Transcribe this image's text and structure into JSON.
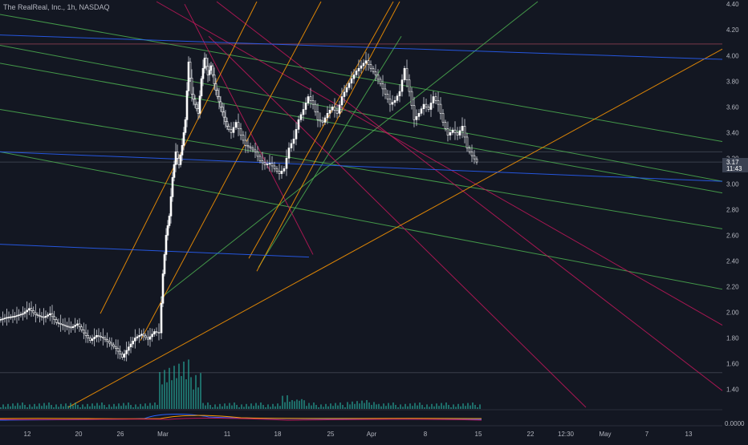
{
  "header": {
    "symbol_label": "The RealReal, Inc., 1h, NASDAQ"
  },
  "price_scale": {
    "ticks": [
      "4.40",
      "4.20",
      "4.00",
      "3.80",
      "3.60",
      "3.40",
      "3.20",
      "3.00",
      "2.80",
      "2.60",
      "2.40",
      "2.20",
      "2.00",
      "1.80",
      "1.60",
      "1.40"
    ],
    "last_price": "3.17",
    "countdown": "11:43",
    "indicator_zero": "0.0000"
  },
  "time_scale": {
    "labels": [
      "12",
      "20",
      "26",
      "Mar",
      "11",
      "18",
      "25",
      "Apr",
      "8",
      "15",
      "22",
      "12:30",
      "May",
      "7",
      "13"
    ]
  },
  "colors": {
    "background": "#131722",
    "candle_up": "#ffffff",
    "candle_down": "#ffffff",
    "green_lines": "#4caf50",
    "red_lines": "#c2185b",
    "orange_lines": "#ff9800",
    "blue_lines": "#2962ff",
    "last_price_badge": "#3b4252"
  },
  "chart_data": {
    "type": "candlestick",
    "title": "The RealReal, Inc., 1h, NASDAQ",
    "ylim": [
      1.26,
      4.42
    ],
    "y_ticks": [
      4.4,
      4.2,
      4.0,
      3.8,
      3.6,
      3.4,
      3.2,
      3.0,
      2.8,
      2.6,
      2.4,
      2.2,
      2.0,
      1.8,
      1.6,
      1.4
    ],
    "x_labels": [
      "12",
      "20",
      "26",
      "Mar",
      "11",
      "18",
      "25",
      "Apr",
      "8",
      "15",
      "22",
      "12:30",
      "May",
      "7",
      "13"
    ],
    "price_path": [
      {
        "x": 0,
        "y": 1.94
      },
      {
        "x": 10,
        "y": 1.96
      },
      {
        "x": 20,
        "y": 1.97
      },
      {
        "x": 30,
        "y": 1.99
      },
      {
        "x": 38,
        "y": 2.03
      },
      {
        "x": 46,
        "y": 1.98
      },
      {
        "x": 56,
        "y": 1.96
      },
      {
        "x": 64,
        "y": 1.99
      },
      {
        "x": 72,
        "y": 1.92
      },
      {
        "x": 80,
        "y": 1.9
      },
      {
        "x": 90,
        "y": 1.88
      },
      {
        "x": 98,
        "y": 1.91
      },
      {
        "x": 106,
        "y": 1.84
      },
      {
        "x": 114,
        "y": 1.78
      },
      {
        "x": 122,
        "y": 1.82
      },
      {
        "x": 130,
        "y": 1.8
      },
      {
        "x": 138,
        "y": 1.76
      },
      {
        "x": 146,
        "y": 1.72
      },
      {
        "x": 154,
        "y": 1.65
      },
      {
        "x": 162,
        "y": 1.73
      },
      {
        "x": 170,
        "y": 1.8
      },
      {
        "x": 178,
        "y": 1.83
      },
      {
        "x": 186,
        "y": 1.79
      },
      {
        "x": 194,
        "y": 1.85
      },
      {
        "x": 200,
        "y": 1.84
      },
      {
        "x": 204,
        "y": 2.3
      },
      {
        "x": 208,
        "y": 2.6
      },
      {
        "x": 212,
        "y": 2.75
      },
      {
        "x": 216,
        "y": 3.05
      },
      {
        "x": 220,
        "y": 3.25
      },
      {
        "x": 224,
        "y": 3.15
      },
      {
        "x": 228,
        "y": 3.3
      },
      {
        "x": 232,
        "y": 3.5
      },
      {
        "x": 236,
        "y": 3.95
      },
      {
        "x": 240,
        "y": 3.7
      },
      {
        "x": 244,
        "y": 3.62
      },
      {
        "x": 248,
        "y": 3.55
      },
      {
        "x": 252,
        "y": 3.82
      },
      {
        "x": 256,
        "y": 3.98
      },
      {
        "x": 260,
        "y": 3.85
      },
      {
        "x": 264,
        "y": 3.92
      },
      {
        "x": 268,
        "y": 3.78
      },
      {
        "x": 272,
        "y": 3.68
      },
      {
        "x": 276,
        "y": 3.6
      },
      {
        "x": 280,
        "y": 3.52
      },
      {
        "x": 284,
        "y": 3.45
      },
      {
        "x": 290,
        "y": 3.4
      },
      {
        "x": 296,
        "y": 3.48
      },
      {
        "x": 302,
        "y": 3.38
      },
      {
        "x": 308,
        "y": 3.3
      },
      {
        "x": 314,
        "y": 3.28
      },
      {
        "x": 320,
        "y": 3.25
      },
      {
        "x": 326,
        "y": 3.18
      },
      {
        "x": 332,
        "y": 3.15
      },
      {
        "x": 338,
        "y": 3.16
      },
      {
        "x": 344,
        "y": 3.12
      },
      {
        "x": 350,
        "y": 3.08
      },
      {
        "x": 356,
        "y": 3.12
      },
      {
        "x": 362,
        "y": 3.28
      },
      {
        "x": 368,
        "y": 3.35
      },
      {
        "x": 374,
        "y": 3.5
      },
      {
        "x": 380,
        "y": 3.58
      },
      {
        "x": 386,
        "y": 3.68
      },
      {
        "x": 392,
        "y": 3.62
      },
      {
        "x": 398,
        "y": 3.5
      },
      {
        "x": 404,
        "y": 3.48
      },
      {
        "x": 410,
        "y": 3.55
      },
      {
        "x": 416,
        "y": 3.6
      },
      {
        "x": 422,
        "y": 3.55
      },
      {
        "x": 428,
        "y": 3.68
      },
      {
        "x": 434,
        "y": 3.75
      },
      {
        "x": 440,
        "y": 3.82
      },
      {
        "x": 446,
        "y": 3.88
      },
      {
        "x": 452,
        "y": 3.92
      },
      {
        "x": 458,
        "y": 3.96
      },
      {
        "x": 464,
        "y": 3.9
      },
      {
        "x": 470,
        "y": 3.85
      },
      {
        "x": 476,
        "y": 3.78
      },
      {
        "x": 482,
        "y": 3.7
      },
      {
        "x": 488,
        "y": 3.62
      },
      {
        "x": 494,
        "y": 3.65
      },
      {
        "x": 500,
        "y": 3.72
      },
      {
        "x": 506,
        "y": 3.9
      },
      {
        "x": 512,
        "y": 3.72
      },
      {
        "x": 518,
        "y": 3.5
      },
      {
        "x": 524,
        "y": 3.55
      },
      {
        "x": 530,
        "y": 3.62
      },
      {
        "x": 536,
        "y": 3.58
      },
      {
        "x": 542,
        "y": 3.68
      },
      {
        "x": 548,
        "y": 3.62
      },
      {
        "x": 554,
        "y": 3.48
      },
      {
        "x": 560,
        "y": 3.38
      },
      {
        "x": 566,
        "y": 3.42
      },
      {
        "x": 572,
        "y": 3.38
      },
      {
        "x": 578,
        "y": 3.45
      },
      {
        "x": 584,
        "y": 3.28
      },
      {
        "x": 590,
        "y": 3.22
      },
      {
        "x": 596,
        "y": 3.17
      }
    ],
    "trendlines": [
      {
        "color": "green",
        "x1": 0,
        "y1": 4.32,
        "x2": 900,
        "y2": 3.33
      },
      {
        "color": "green",
        "x1": 0,
        "y1": 4.08,
        "x2": 900,
        "y2": 3.02
      },
      {
        "color": "green",
        "x1": 0,
        "y1": 3.94,
        "x2": 900,
        "y2": 2.93
      },
      {
        "color": "green",
        "x1": 0,
        "y1": 3.58,
        "x2": 900,
        "y2": 2.65
      },
      {
        "color": "green",
        "x1": 0,
        "y1": 3.25,
        "x2": 900,
        "y2": 2.18
      },
      {
        "color": "green",
        "x1": 200,
        "y1": 2.11,
        "x2": 670,
        "y2": 4.42
      },
      {
        "color": "green",
        "x1": 322,
        "y1": 2.35,
        "x2": 500,
        "y2": 4.15
      },
      {
        "color": "red",
        "x1": 195,
        "y1": 4.42,
        "x2": 900,
        "y2": 1.9
      },
      {
        "color": "red",
        "x1": 270,
        "y1": 4.42,
        "x2": 900,
        "y2": 1.39
      },
      {
        "color": "red",
        "x1": 230,
        "y1": 4.4,
        "x2": 390,
        "y2": 2.45
      },
      {
        "color": "red",
        "x1": 260,
        "y1": 4.15,
        "x2": 730,
        "y2": 1.26
      },
      {
        "color": "orange",
        "x1": 125,
        "y1": 1.99,
        "x2": 320,
        "y2": 4.42
      },
      {
        "color": "orange",
        "x1": 175,
        "y1": 1.78,
        "x2": 400,
        "y2": 4.42
      },
      {
        "color": "orange",
        "x1": 310,
        "y1": 2.42,
        "x2": 490,
        "y2": 4.42
      },
      {
        "color": "orange",
        "x1": 320,
        "y1": 2.32,
        "x2": 498,
        "y2": 4.42
      },
      {
        "color": "orange",
        "x1": 85,
        "y1": 1.26,
        "x2": 900,
        "y2": 4.05
      },
      {
        "color": "blue",
        "x1": 0,
        "y1": 4.16,
        "x2": 900,
        "y2": 3.97
      },
      {
        "color": "blue",
        "x1": 0,
        "y1": 3.25,
        "x2": 900,
        "y2": 3.02
      },
      {
        "color": "blue",
        "x1": 0,
        "y1": 2.53,
        "x2": 385,
        "y2": 2.43
      }
    ],
    "horizontal_levels": [
      4.09,
      3.25,
      3.17,
      1.53
    ]
  }
}
